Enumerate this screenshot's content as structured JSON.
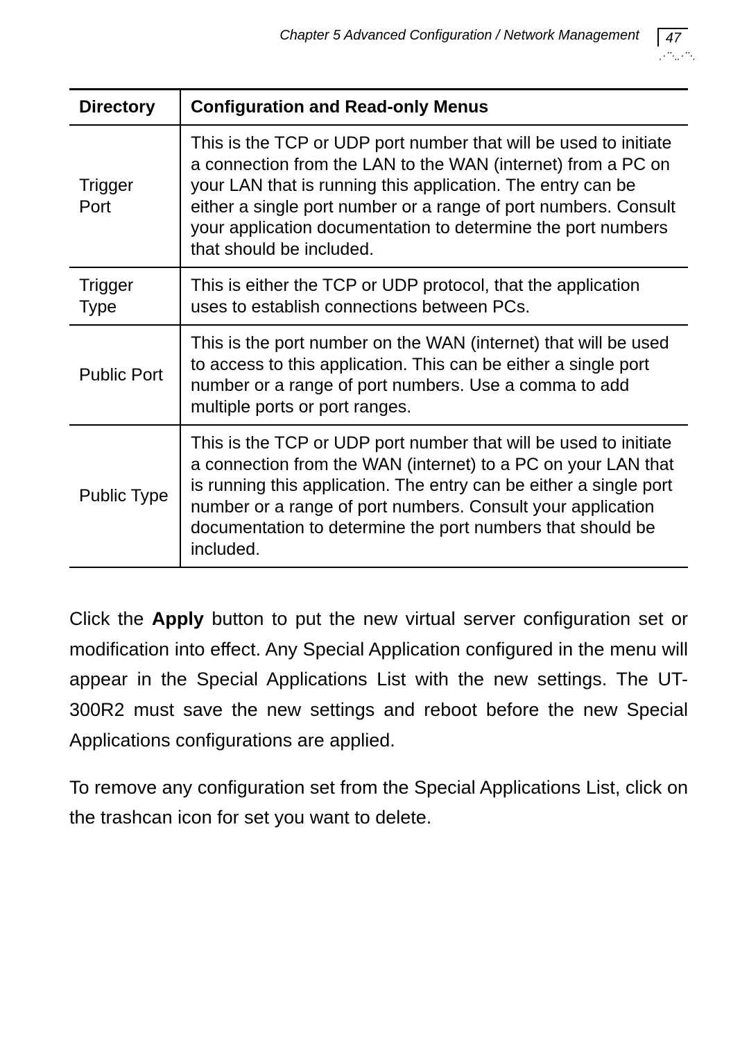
{
  "header": {
    "chapter_title": "Chapter 5 Advanced Configuration / Network Management",
    "page_number": "47"
  },
  "table": {
    "header": {
      "col1": "Directory",
      "col2": "Configuration and Read-only Menus"
    },
    "rows": [
      {
        "label": "Trigger Port",
        "desc": "This is the TCP or UDP port number that will be used to initiate a connection from the LAN to the WAN (internet) from a PC on your LAN that is running this application. The entry can be either a single port number or a range of port numbers. Consult your application documentation to determine the port numbers that should be included."
      },
      {
        "label": "Trigger Type",
        "desc": "This is either the TCP or UDP protocol, that the application uses to establish connections between PCs."
      },
      {
        "label": "Public Port",
        "desc": "This is the port number on the WAN (internet) that will be used to access to this application. This can be either a single port number or a range of port numbers. Use a comma to add multiple ports or port ranges."
      },
      {
        "label": "Public Type",
        "desc": "This is the TCP or UDP port number that will be used to initiate a connection from the WAN (internet) to a PC on your LAN that is running this application. The entry can be either a single port number or a range of port numbers. Consult your application documentation to determine the port numbers that should be included."
      }
    ]
  },
  "paragraphs": {
    "p1_pre": "Click the ",
    "p1_bold": "Apply",
    "p1_post": " button to put the new virtual server configuration set or modification into effect. Any Special Application configured in the menu will appear in the Special Applications List with the new settings. The UT-300R2 must save the new settings and reboot before the new Special Applications configurations are applied.",
    "p2": "To remove any configuration set from the Special Applications List, click on the trashcan icon for set you want to delete."
  }
}
